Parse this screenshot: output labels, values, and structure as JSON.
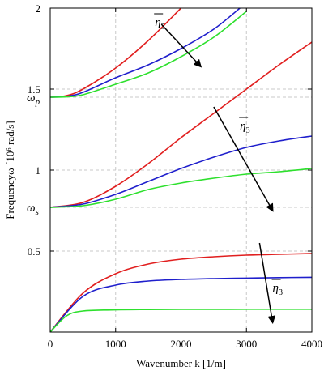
{
  "chart_data": {
    "type": "line",
    "xlabel": "Wavenumber k [1/m]",
    "ylabel": "Frequencyω [10⁶ rad/s]",
    "xlim": [
      0,
      4000
    ],
    "ylim": [
      0,
      2
    ],
    "x_ticks": [
      0,
      1000,
      2000,
      3000,
      4000
    ],
    "y_ticks": [
      0.5,
      1,
      1.5,
      2
    ],
    "y_tick_labels": [
      "0.5",
      "1",
      "1.5",
      "2"
    ],
    "grid": "dashed",
    "y_markers": [
      {
        "label": "ω",
        "sub": "s",
        "value": 0.77
      },
      {
        "label": "ω",
        "sub": "p",
        "value": 1.45
      }
    ],
    "eta_label": {
      "base": "η",
      "sub": "3"
    },
    "colors": {
      "red": "#e11f1f",
      "blue": "#1f1fcc",
      "green": "#2ee02e",
      "grid": "#c8c8c8"
    },
    "series": [
      {
        "color": "red",
        "x": [
          0,
          500,
          1000,
          1500,
          2000,
          2500,
          3000,
          3500,
          4000
        ],
        "y": [
          0.0,
          0.24,
          0.36,
          0.42,
          0.45,
          0.465,
          0.475,
          0.48,
          0.485
        ]
      },
      {
        "color": "blue",
        "x": [
          0,
          500,
          1000,
          1500,
          2000,
          2500,
          3000,
          3500,
          4000
        ],
        "y": [
          0.0,
          0.22,
          0.29,
          0.315,
          0.325,
          0.33,
          0.333,
          0.336,
          0.338
        ]
      },
      {
        "color": "green",
        "x": [
          0,
          250,
          500,
          1000,
          1500,
          2000,
          2500,
          3000,
          3500,
          4000
        ],
        "y": [
          0.0,
          0.1,
          0.13,
          0.137,
          0.139,
          0.14,
          0.14,
          0.141,
          0.141,
          0.141
        ]
      },
      {
        "color": "red",
        "x": [
          0,
          500,
          1000,
          1500,
          2000,
          2500,
          3000,
          3500,
          4000
        ],
        "y": [
          0.77,
          0.8,
          0.9,
          1.04,
          1.2,
          1.35,
          1.5,
          1.65,
          1.79
        ]
      },
      {
        "color": "blue",
        "x": [
          0,
          500,
          1000,
          1500,
          2000,
          2500,
          3000,
          3500,
          4000
        ],
        "y": [
          0.77,
          0.79,
          0.85,
          0.93,
          1.01,
          1.08,
          1.14,
          1.18,
          1.21
        ]
      },
      {
        "color": "green",
        "x": [
          0,
          500,
          1000,
          1500,
          2000,
          2500,
          3000,
          3500,
          4000
        ],
        "y": [
          0.77,
          0.78,
          0.82,
          0.88,
          0.92,
          0.95,
          0.975,
          0.99,
          1.01
        ]
      },
      {
        "color": "red",
        "x": [
          0,
          250,
          500,
          1000,
          1500,
          2000
        ],
        "y": [
          1.45,
          1.46,
          1.5,
          1.63,
          1.8,
          2.0
        ]
      },
      {
        "color": "blue",
        "x": [
          0,
          250,
          500,
          1000,
          1500,
          2000,
          2500,
          2900
        ],
        "y": [
          1.45,
          1.455,
          1.48,
          1.57,
          1.65,
          1.75,
          1.87,
          2.0
        ]
      },
      {
        "color": "green",
        "x": [
          0,
          250,
          500,
          1000,
          1500,
          2000,
          2500,
          3000
        ],
        "y": [
          1.45,
          1.452,
          1.465,
          1.53,
          1.6,
          1.7,
          1.82,
          1.98
        ]
      }
    ],
    "arrows": [
      {
        "from": [
          1700,
          1.9
        ],
        "to": [
          2300,
          1.64
        ]
      },
      {
        "from": [
          2500,
          1.39
        ],
        "to": [
          3400,
          0.75
        ]
      },
      {
        "from": [
          3200,
          0.55
        ],
        "to": [
          3400,
          0.06
        ]
      }
    ],
    "eta_positions": [
      [
        1600,
        1.89
      ],
      [
        2900,
        1.25
      ],
      [
        3400,
        0.25
      ]
    ]
  }
}
